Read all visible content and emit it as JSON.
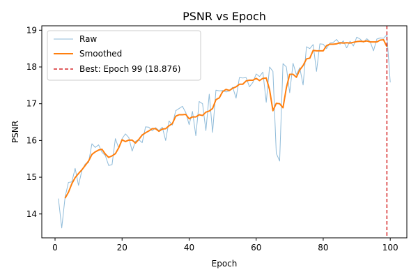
{
  "chart_data": {
    "type": "line",
    "title": "PSNR vs Epoch",
    "xlabel": "Epoch",
    "ylabel": "PSNR",
    "xlim": [
      -3.95,
      104.95
    ],
    "ylim": [
      13.35,
      19.12
    ],
    "xticks": [
      0,
      20,
      40,
      60,
      80,
      100
    ],
    "yticks": [
      14,
      15,
      16,
      17,
      18,
      19
    ],
    "grid": false,
    "legend_position": "top-left",
    "series": [
      {
        "name": "Raw",
        "color": "#1f77b4",
        "x": [
          1,
          2,
          3,
          4,
          5,
          6,
          7,
          8,
          9,
          10,
          11,
          12,
          13,
          14,
          15,
          16,
          17,
          18,
          19,
          20,
          21,
          22,
          23,
          24,
          25,
          26,
          27,
          28,
          29,
          30,
          31,
          32,
          33,
          34,
          35,
          36,
          37,
          38,
          39,
          40,
          41,
          42,
          43,
          44,
          45,
          46,
          47,
          48,
          49,
          50,
          51,
          52,
          53,
          54,
          55,
          56,
          57,
          58,
          59,
          60,
          61,
          62,
          63,
          64,
          65,
          66,
          67,
          68,
          69,
          70,
          71,
          72,
          73,
          74,
          75,
          76,
          77,
          78,
          79,
          80,
          81,
          82,
          83,
          84,
          85,
          86,
          87,
          88,
          89,
          90,
          91,
          92,
          93,
          94,
          95,
          96,
          97,
          98,
          99,
          100
        ],
        "y": [
          14.42,
          13.62,
          14.46,
          14.86,
          14.87,
          15.24,
          14.78,
          15.18,
          15.36,
          15.4,
          15.91,
          15.81,
          15.88,
          15.68,
          15.59,
          15.32,
          15.34,
          16.05,
          15.79,
          16.05,
          16.18,
          16.08,
          15.71,
          15.98,
          16.02,
          15.94,
          16.37,
          16.36,
          16.26,
          16.35,
          16.27,
          16.36,
          16.0,
          16.53,
          16.42,
          16.81,
          16.87,
          16.93,
          16.76,
          16.43,
          16.79,
          16.13,
          17.06,
          17.0,
          16.27,
          17.26,
          16.22,
          17.37,
          17.35,
          17.36,
          17.32,
          17.35,
          17.45,
          17.15,
          17.71,
          17.7,
          17.71,
          17.46,
          17.58,
          17.81,
          17.74,
          17.86,
          17.04,
          18.0,
          17.88,
          15.65,
          15.44,
          18.09,
          18.0,
          17.3,
          18.1,
          17.79,
          17.98,
          17.51,
          18.55,
          18.5,
          18.61,
          17.88,
          18.63,
          18.62,
          18.5,
          18.65,
          18.67,
          18.75,
          18.62,
          18.71,
          18.52,
          18.7,
          18.57,
          18.81,
          18.76,
          18.67,
          18.77,
          18.69,
          18.44,
          18.76,
          18.79,
          18.78,
          18.876,
          17.58
        ]
      },
      {
        "name": "Smoothed",
        "color": "#ff7f0e",
        "x": [
          3,
          4,
          5,
          6,
          7,
          8,
          9,
          10,
          11,
          12,
          13,
          14,
          15,
          16,
          17,
          18,
          19,
          20,
          21,
          22,
          23,
          24,
          25,
          26,
          27,
          28,
          29,
          30,
          31,
          32,
          33,
          34,
          35,
          36,
          37,
          38,
          39,
          40,
          41,
          42,
          43,
          44,
          45,
          46,
          47,
          48,
          49,
          50,
          51,
          52,
          53,
          54,
          55,
          56,
          57,
          58,
          59,
          60,
          61,
          62,
          63,
          64,
          65,
          66,
          67,
          68,
          69,
          70,
          71,
          72,
          73,
          74,
          75,
          76,
          77,
          78,
          79,
          80,
          81,
          82,
          83,
          84,
          85,
          86,
          87,
          88,
          89,
          90,
          91,
          92,
          93,
          94,
          95,
          96,
          97,
          98,
          99
        ],
        "y": [
          14.43,
          14.59,
          14.82,
          14.99,
          15.1,
          15.2,
          15.32,
          15.44,
          15.62,
          15.69,
          15.74,
          15.76,
          15.63,
          15.54,
          15.58,
          15.64,
          15.8,
          16.02,
          15.97,
          16.01,
          16.01,
          15.93,
          16.03,
          16.15,
          16.21,
          16.26,
          16.32,
          16.32,
          16.25,
          16.31,
          16.32,
          16.4,
          16.46,
          16.66,
          16.7,
          16.7,
          16.71,
          16.59,
          16.64,
          16.64,
          16.7,
          16.68,
          16.77,
          16.8,
          16.87,
          17.11,
          17.16,
          17.33,
          17.39,
          17.36,
          17.42,
          17.46,
          17.53,
          17.53,
          17.62,
          17.64,
          17.64,
          17.69,
          17.63,
          17.69,
          17.7,
          17.38,
          16.81,
          17.01,
          17.0,
          16.89,
          17.43,
          17.8,
          17.8,
          17.72,
          17.92,
          18.04,
          18.22,
          18.24,
          18.45,
          18.44,
          18.44,
          18.44,
          18.58,
          18.62,
          18.62,
          18.63,
          18.66,
          18.65,
          18.66,
          18.65,
          18.67,
          18.69,
          18.7,
          18.69,
          18.71,
          18.68,
          18.68,
          18.68,
          18.73,
          18.74,
          18.55
        ]
      }
    ],
    "reference_lines": [
      {
        "name": "Best: Epoch 99 (18.876)",
        "orientation": "vertical",
        "x": 99,
        "color": "#d62728",
        "style": "dashed"
      }
    ]
  }
}
